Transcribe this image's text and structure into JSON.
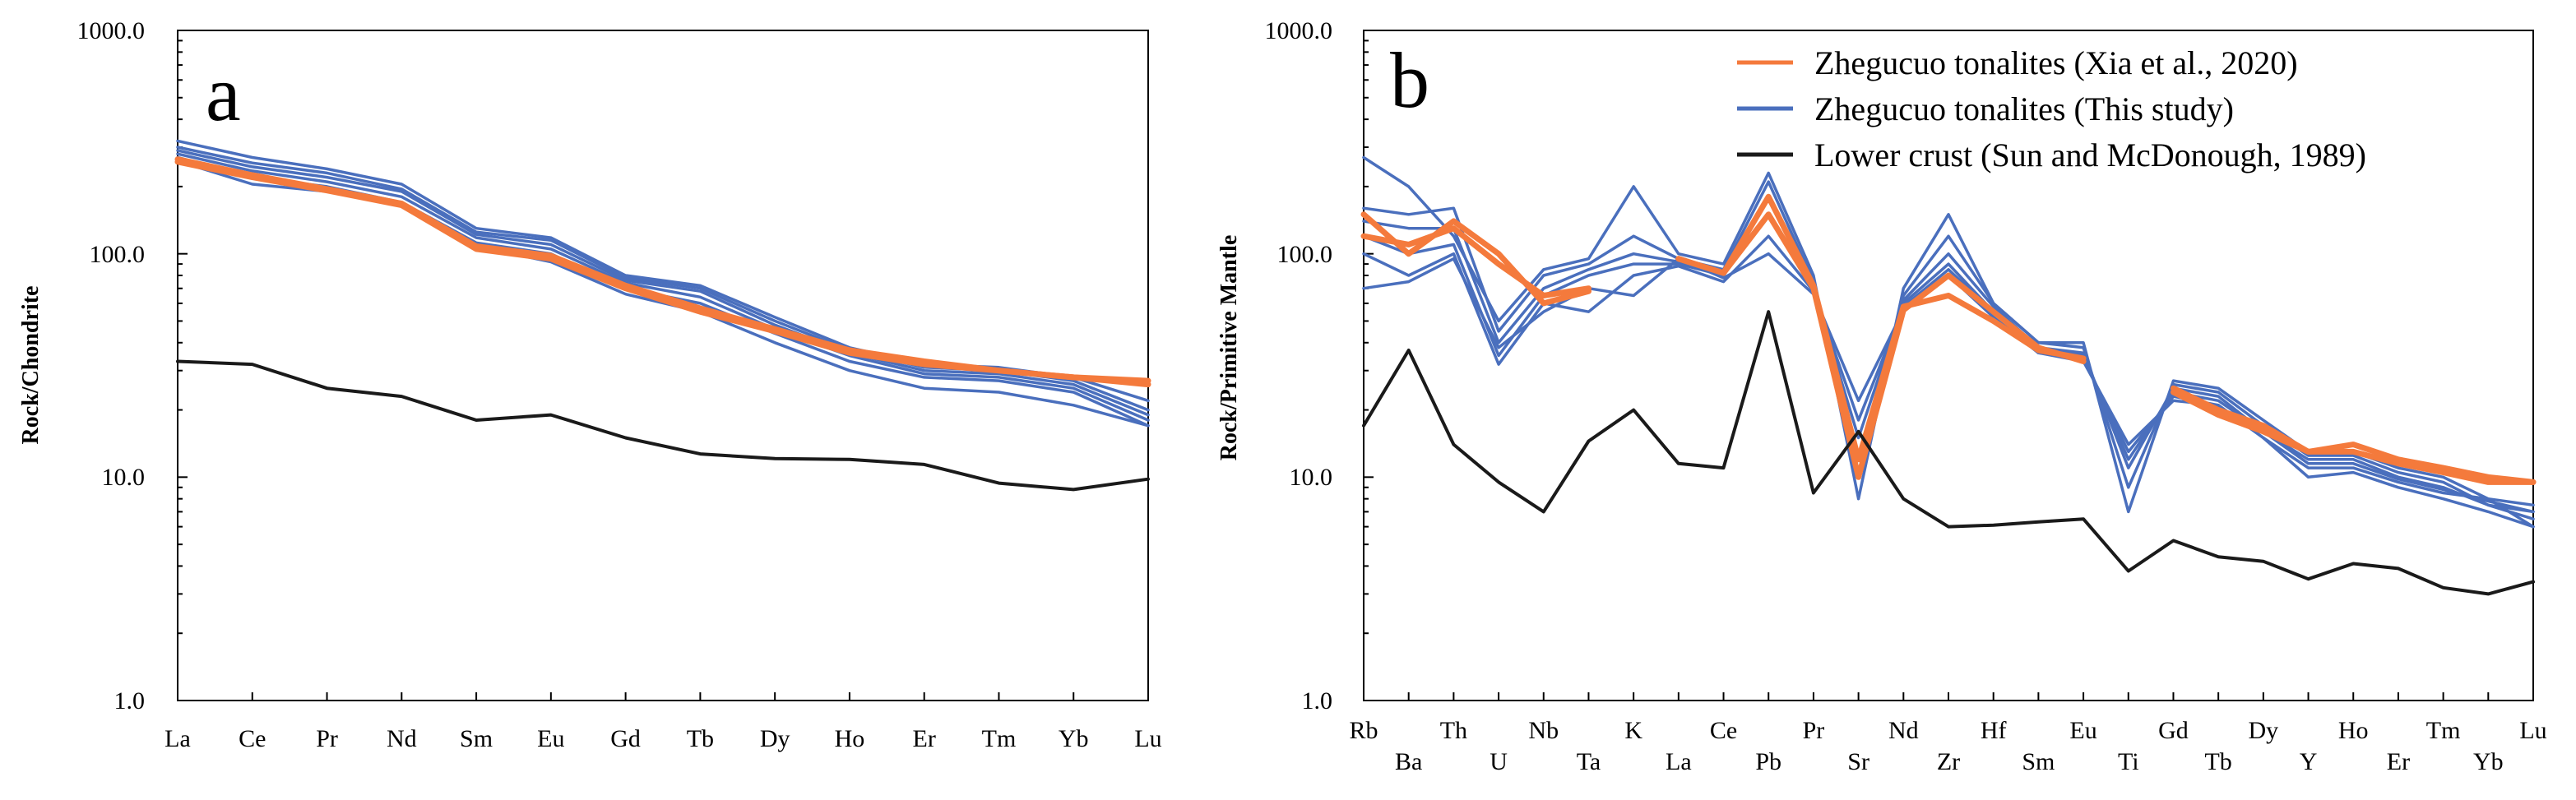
{
  "colors": {
    "orange": "#f47a3c",
    "blue": "#4a6fbd",
    "black": "#1a1a1a"
  },
  "chart_data": [
    {
      "type": "line",
      "panel": "a",
      "yscale": "log",
      "ylim": [
        1.0,
        1000.0
      ],
      "ylabel": "Rock/Chondrite",
      "ytick_labels": [
        "1000.0",
        "100.0",
        "10.0",
        "1.0"
      ],
      "yticks": [
        1000,
        100,
        10,
        1
      ],
      "categories": [
        "La",
        "Ce",
        "Pr",
        "Nd",
        "Sm",
        "Eu",
        "Gd",
        "Tb",
        "Dy",
        "Ho",
        "Er",
        "Tm",
        "Yb",
        "Lu"
      ],
      "series": [
        {
          "name": "Zhegucuo tonalites (This study)",
          "color": "blue",
          "values": [
            320,
            270,
            240,
            205,
            130,
            118,
            80,
            72,
            52,
            38,
            32,
            31,
            28,
            22
          ]
        },
        {
          "name": "Zhegucuo tonalites (This study)",
          "color": "blue",
          "values": [
            300,
            255,
            230,
            195,
            125,
            115,
            78,
            70,
            50,
            37,
            31,
            30,
            27,
            20
          ]
        },
        {
          "name": "Zhegucuo tonalites (This study)",
          "color": "blue",
          "values": [
            290,
            245,
            220,
            190,
            122,
            110,
            76,
            68,
            48,
            36,
            30,
            29,
            26,
            19
          ]
        },
        {
          "name": "Zhegucuo tonalites (This study)",
          "color": "blue",
          "values": [
            280,
            235,
            210,
            180,
            118,
            105,
            74,
            64,
            46,
            35,
            29,
            28,
            25,
            18
          ]
        },
        {
          "name": "Zhegucuo tonalites (This study)",
          "color": "blue",
          "values": [
            270,
            220,
            200,
            170,
            112,
            100,
            70,
            60,
            44,
            33,
            28,
            27,
            24,
            17
          ]
        },
        {
          "name": "Zhegucuo tonalites (This study)",
          "color": "blue",
          "values": [
            260,
            205,
            190,
            165,
            108,
            92,
            66,
            55,
            40,
            30,
            25,
            24,
            21,
            17
          ]
        },
        {
          "name": "Zhegucuo tonalites (Xia et al., 2020)",
          "color": "orange",
          "values": [
            265,
            225,
            195,
            168,
            108,
            98,
            72,
            57,
            46,
            37,
            33,
            30,
            28,
            27
          ]
        },
        {
          "name": "Zhegucuo tonalites (Xia et al., 2020)",
          "color": "orange",
          "values": [
            258,
            220,
            192,
            165,
            105,
            95,
            70,
            55,
            45,
            36,
            32,
            30,
            28,
            26
          ]
        },
        {
          "name": "Lower crust (Sun and McDonough, 1989)",
          "color": "black",
          "values": [
            33,
            32,
            25,
            23,
            18,
            19,
            15,
            12.7,
            12.1,
            12,
            11.4,
            9.4,
            8.8,
            9.8
          ]
        }
      ]
    },
    {
      "type": "line",
      "panel": "b",
      "yscale": "log",
      "ylim": [
        1.0,
        1000.0
      ],
      "ylabel": "Rock/Primitive Mantle",
      "ytick_labels": [
        "1000.0",
        "100.0",
        "10.0",
        "1.0"
      ],
      "yticks": [
        1000,
        100,
        10,
        1
      ],
      "categories": [
        "Rb",
        "Ba",
        "Th",
        "U",
        "Nb",
        "Ta",
        "K",
        "La",
        "Ce",
        "Pb",
        "Pr",
        "Sr",
        "Nd",
        "Zr",
        "Hf",
        "Sm",
        "Eu",
        "Ti",
        "Gd",
        "Tb",
        "Dy",
        "Y",
        "Ho",
        "Er",
        "Tm",
        "Yb",
        "Lu"
      ],
      "legend": [
        {
          "label": "Zhegucuo tonalites (Xia et al., 2020)",
          "color": "orange"
        },
        {
          "label": "Zhegucuo tonalites (This study)",
          "color": "blue"
        },
        {
          "label": "Lower crust (Sun and McDonough, 1989)",
          "color": "black"
        }
      ],
      "series": [
        {
          "name": "Zhegucuo tonalites (This study)",
          "color": "blue",
          "values": [
            270,
            200,
            120,
            50,
            85,
            95,
            200,
            100,
            90,
            230,
            80,
            8,
            70,
            150,
            60,
            40,
            40,
            7,
            27,
            25,
            18,
            13,
            13,
            11,
            10,
            8,
            6
          ]
        },
        {
          "name": "Zhegucuo tonalites (This study)",
          "color": "blue",
          "values": [
            160,
            150,
            160,
            45,
            80,
            90,
            120,
            95,
            85,
            210,
            75,
            10,
            65,
            120,
            60,
            40,
            38,
            9,
            26,
            24,
            17,
            12.5,
            12.5,
            10.5,
            9.5,
            7.5,
            6.5
          ]
        },
        {
          "name": "Zhegucuo tonalites (This study)",
          "color": "blue",
          "values": [
            140,
            130,
            130,
            40,
            70,
            85,
            100,
            92,
            82,
            180,
            72,
            12,
            62,
            100,
            58,
            38,
            36,
            11,
            25,
            23,
            16,
            12,
            12,
            10,
            9,
            7.5,
            7
          ]
        },
        {
          "name": "Zhegucuo tonalites (This study)",
          "color": "blue",
          "values": [
            120,
            100,
            110,
            35,
            65,
            80,
            90,
            90,
            80,
            150,
            70,
            15,
            60,
            90,
            55,
            38,
            35,
            12,
            24,
            22,
            16,
            11.5,
            11.5,
            9.8,
            8.8,
            7.8,
            7
          ]
        },
        {
          "name": "Zhegucuo tonalites (This study)",
          "color": "blue",
          "values": [
            100,
            80,
            100,
            32,
            60,
            55,
            80,
            88,
            75,
            120,
            68,
            18,
            58,
            85,
            55,
            36,
            34,
            13,
            23,
            21,
            15,
            11,
            11,
            9.5,
            8.5,
            8,
            7.5
          ]
        },
        {
          "name": "Zhegucuo tonalites (This study)",
          "color": "blue",
          "values": [
            70,
            75,
            95,
            38,
            55,
            70,
            65,
            95,
            78,
            100,
            66,
            22,
            56,
            80,
            52,
            36,
            33,
            14,
            22,
            21,
            15,
            10,
            10.5,
            9,
            8,
            7,
            6
          ]
        },
        {
          "name": "Zhegucuo tonalites (Xia et al., 2020)",
          "color": "orange",
          "values": [
            150,
            100,
            140,
            100,
            60,
            68,
            null,
            null,
            null,
            null,
            null,
            null,
            null,
            null,
            null,
            null,
            null,
            null,
            null,
            null,
            null,
            null,
            null,
            null,
            null,
            null,
            null
          ]
        },
        {
          "name": "Zhegucuo tonalites (Xia et al., 2020)",
          "color": "orange",
          "values": [
            120,
            110,
            130,
            90,
            65,
            70,
            null,
            null,
            null,
            null,
            null,
            null,
            null,
            null,
            null,
            null,
            null,
            null,
            null,
            null,
            null,
            null,
            null,
            null,
            null,
            null,
            null
          ]
        },
        {
          "name": "Zhegucuo tonalites (Xia et al., 2020)",
          "color": "orange",
          "values": [
            null,
            null,
            null,
            null,
            null,
            null,
            null,
            95,
            82,
            180,
            72,
            12,
            58,
            65,
            50,
            37,
            34,
            null,
            24,
            19,
            16,
            13,
            14,
            12,
            11,
            10,
            9.5
          ]
        },
        {
          "name": "Zhegucuo tonalites (Xia et al., 2020)",
          "color": "orange",
          "values": [
            null,
            null,
            null,
            null,
            null,
            null,
            null,
            95,
            82,
            150,
            70,
            10,
            56,
            80,
            55,
            38,
            33,
            null,
            25,
            20,
            17,
            13,
            13,
            11.5,
            10.5,
            9.5,
            9.5
          ]
        },
        {
          "name": "Lower crust (Sun and McDonough, 1989)",
          "color": "black",
          "values": [
            17,
            37,
            14,
            9.5,
            7,
            14.5,
            20,
            11.5,
            11,
            55,
            8.5,
            16,
            8,
            6,
            6.1,
            6.3,
            6.5,
            3.8,
            5.2,
            4.4,
            4.2,
            3.5,
            4.1,
            3.9,
            3.2,
            3,
            3.4
          ]
        }
      ]
    }
  ]
}
